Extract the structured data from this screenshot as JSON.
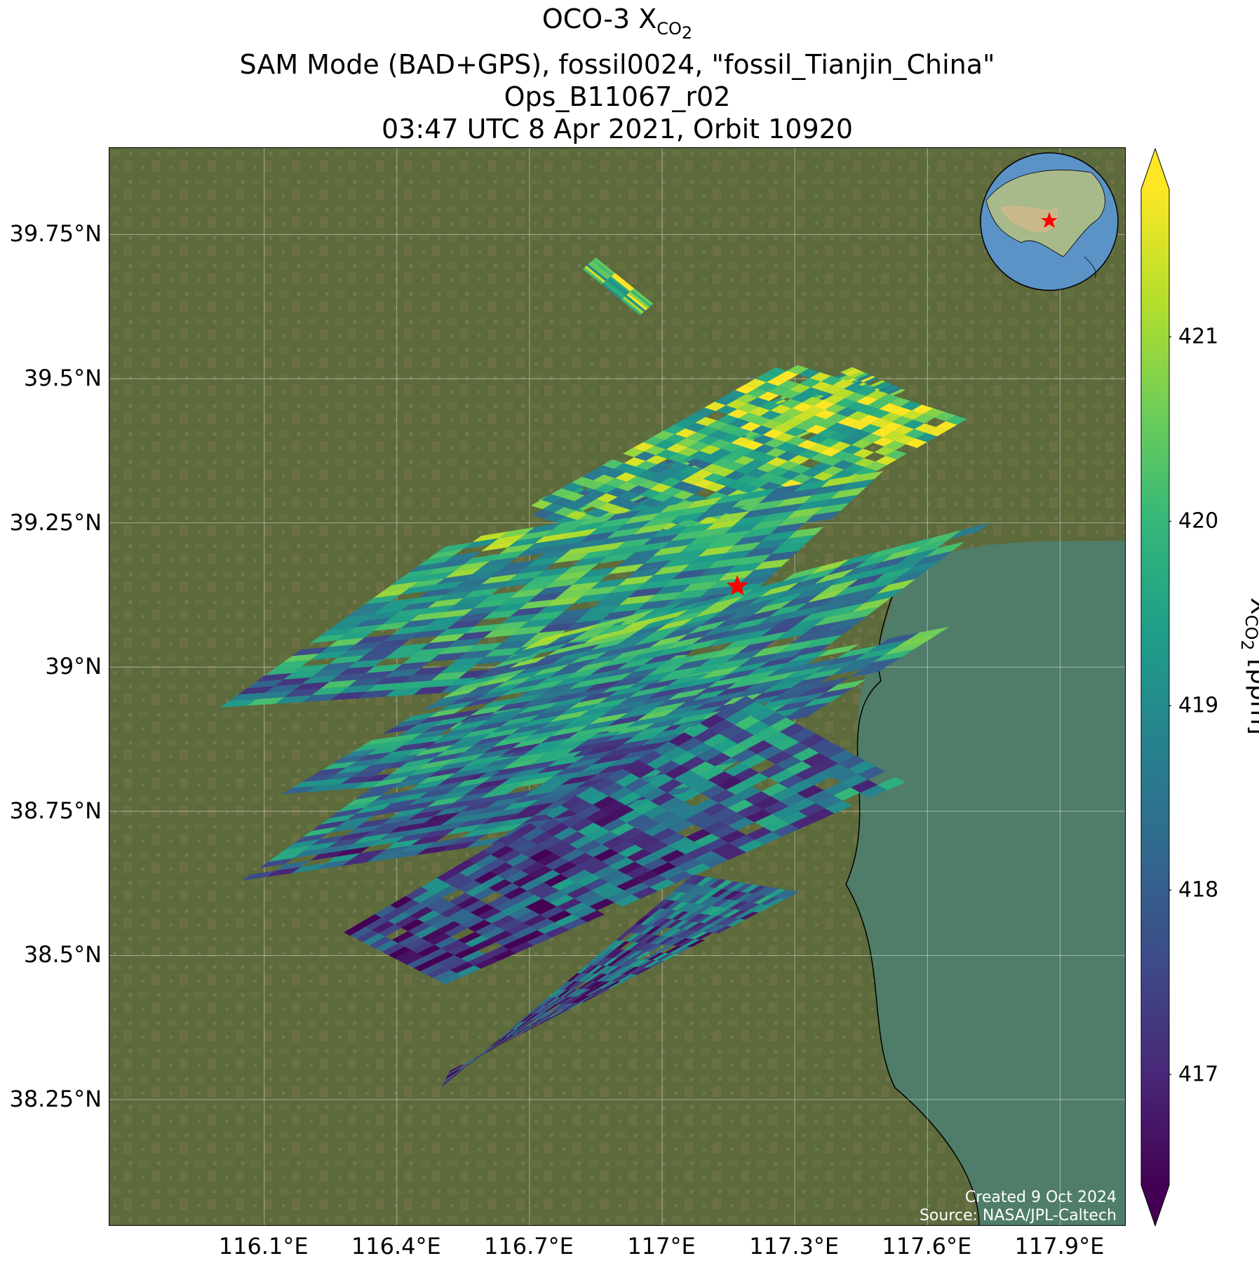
{
  "title": {
    "line1_main": "OCO-3 X",
    "line1_sub": "CO",
    "line1_subsub": "2",
    "line2": "SAM Mode (BAD+GPS), fossil0024, \"fossil_Tianjin_China\"",
    "line3": "Ops_B11067_r02",
    "line4": "03:47 UTC 8 Apr 2021, Orbit 10920"
  },
  "map": {
    "lon_range": [
      115.75,
      118.05
    ],
    "lat_range": [
      38.03,
      39.9
    ],
    "lat_ticks": [
      {
        "value": 39.75,
        "label": "39.75°N"
      },
      {
        "value": 39.5,
        "label": "39.5°N"
      },
      {
        "value": 39.25,
        "label": "39.25°N"
      },
      {
        "value": 39.0,
        "label": "39°N"
      },
      {
        "value": 38.75,
        "label": "38.75°N"
      },
      {
        "value": 38.5,
        "label": "38.5°N"
      },
      {
        "value": 38.25,
        "label": "38.25°N"
      }
    ],
    "lon_ticks": [
      {
        "value": 116.1,
        "label": "116.1°E"
      },
      {
        "value": 116.4,
        "label": "116.4°E"
      },
      {
        "value": 116.7,
        "label": "116.7°E"
      },
      {
        "value": 117.0,
        "label": "117°E"
      },
      {
        "value": 117.3,
        "label": "117.3°E"
      },
      {
        "value": 117.6,
        "label": "117.6°E"
      },
      {
        "value": 117.9,
        "label": "117.9°E"
      }
    ],
    "target_marker": {
      "name": "fossil_Tianjin_China",
      "lon": 117.17,
      "lat": 39.14,
      "color": "#ff0000"
    },
    "credit_line1": "Created 9 Oct 2024",
    "credit_line2": "Source: NASA/JPL-Caltech",
    "background_colors": {
      "land": "#5c6a3c",
      "sea": "#4f7d6a",
      "coastline": "#000000"
    }
  },
  "colorbar": {
    "label_main": "X",
    "label_sub": "CO",
    "label_subsub": "2",
    "label_unit": " [ppm]",
    "vmin": 416.4,
    "vmax": 421.8,
    "ticks": [
      417,
      418,
      419,
      420,
      421
    ],
    "extend": "both",
    "colormap": "viridis",
    "colormap_stops": [
      "#440154",
      "#482878",
      "#3e4a89",
      "#31688e",
      "#26828e",
      "#1f9e89",
      "#35b779",
      "#6ece58",
      "#b5de2b",
      "#fde725"
    ]
  },
  "chart_data": {
    "type": "heatmap",
    "title": "OCO-3 XCO2",
    "xlabel": "",
    "ylabel": "",
    "colorbar_label": "XCO2 [ppm]",
    "swaths": [
      {
        "id": 1,
        "corners_lonlat": [
          [
            116.82,
            39.69
          ],
          [
            116.85,
            39.71
          ],
          [
            116.98,
            39.63
          ],
          [
            116.95,
            39.61
          ]
        ],
        "mean_xco2": 420.6
      },
      {
        "id": 2,
        "corners_lonlat": [
          [
            116.72,
            39.29
          ],
          [
            117.43,
            39.52
          ],
          [
            117.55,
            39.48
          ],
          [
            116.85,
            39.24
          ]
        ],
        "mean_xco2": 419.6
      },
      {
        "id": 3,
        "corners_lonlat": [
          [
            116.68,
            39.27
          ],
          [
            117.28,
            39.53
          ],
          [
            117.69,
            39.43
          ],
          [
            117.1,
            39.17
          ]
        ],
        "mean_xco2": 420.2
      },
      {
        "id": 4,
        "corners_lonlat": [
          [
            116.0,
            38.93
          ],
          [
            116.53,
            39.22
          ],
          [
            117.5,
            39.34
          ],
          [
            117.0,
            38.98
          ]
        ],
        "mean_xco2": 419.3
      },
      {
        "id": 5,
        "corners_lonlat": [
          [
            116.14,
            38.78
          ],
          [
            116.73,
            39.05
          ],
          [
            117.74,
            39.25
          ],
          [
            117.02,
            38.83
          ]
        ],
        "mean_xco2": 419.0
      },
      {
        "id": 6,
        "corners_lonlat": [
          [
            116.05,
            38.63
          ],
          [
            116.56,
            38.91
          ],
          [
            117.65,
            39.07
          ],
          [
            116.95,
            38.73
          ]
        ],
        "mean_xco2": 418.6
      },
      {
        "id": 7,
        "corners_lonlat": [
          [
            116.28,
            38.54
          ],
          [
            117.19,
            38.95
          ],
          [
            117.55,
            38.8
          ],
          [
            116.51,
            38.45
          ]
        ],
        "mean_xco2": 418.0
      },
      {
        "id": 8,
        "corners_lonlat": [
          [
            116.5,
            38.27
          ],
          [
            117.07,
            38.64
          ],
          [
            117.31,
            38.61
          ],
          [
            116.52,
            38.3
          ]
        ],
        "mean_xco2": 417.8
      }
    ]
  }
}
